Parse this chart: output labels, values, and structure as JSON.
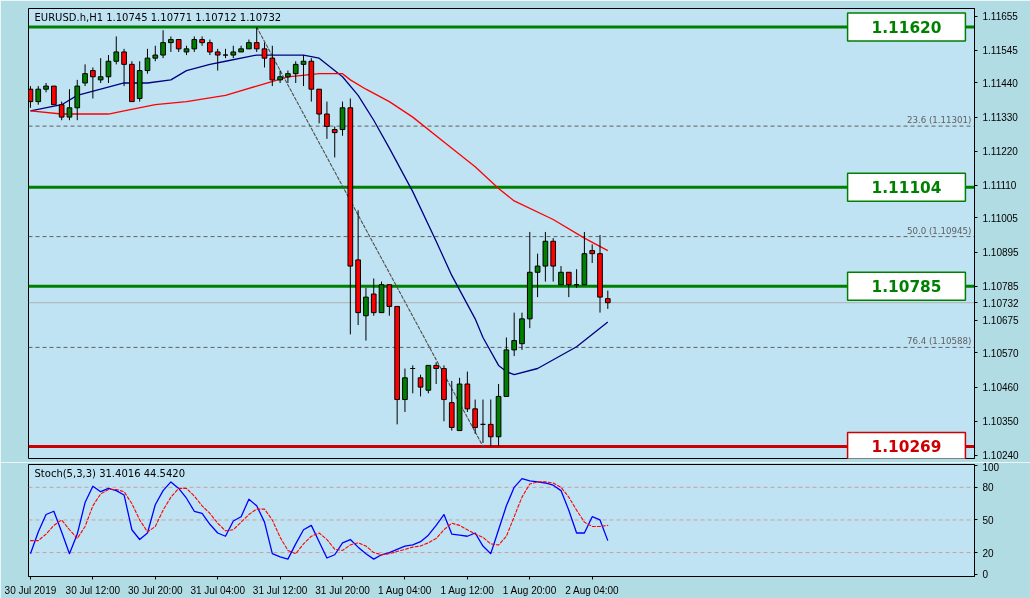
{
  "chart_data": [
    {
      "type": "candlestick",
      "title": "EURUSD.h,H1 1.10745 1.10771 1.10712 1.10732",
      "x": [
        "2019-07-30T04:00",
        "2019-07-30T05:00",
        "2019-07-30T06:00",
        "2019-07-30T07:00",
        "2019-07-30T08:00",
        "2019-07-30T09:00",
        "2019-07-30T10:00",
        "2019-07-30T11:00",
        "2019-07-30T12:00",
        "2019-07-30T13:00",
        "2019-07-30T14:00",
        "2019-07-30T15:00",
        "2019-07-30T16:00",
        "2019-07-30T17:00",
        "2019-07-30T18:00",
        "2019-07-30T19:00",
        "2019-07-30T20:00",
        "2019-07-30T21:00",
        "2019-07-30T22:00",
        "2019-07-30T23:00",
        "2019-07-31T00:00",
        "2019-07-31T01:00",
        "2019-07-31T02:00",
        "2019-07-31T03:00",
        "2019-07-31T04:00",
        "2019-07-31T05:00",
        "2019-07-31T06:00",
        "2019-07-31T07:00",
        "2019-07-31T08:00",
        "2019-07-31T09:00",
        "2019-07-31T10:00",
        "2019-07-31T11:00",
        "2019-07-31T12:00",
        "2019-07-31T13:00",
        "2019-07-31T14:00",
        "2019-07-31T15:00",
        "2019-07-31T16:00",
        "2019-07-31T17:00",
        "2019-07-31T18:00",
        "2019-07-31T19:00",
        "2019-07-31T20:00",
        "2019-07-31T21:00",
        "2019-07-31T22:00",
        "2019-07-31T23:00",
        "2019-08-01T00:00",
        "2019-08-01T01:00",
        "2019-08-01T02:00",
        "2019-08-01T03:00",
        "2019-08-01T04:00",
        "2019-08-01T05:00",
        "2019-08-01T06:00",
        "2019-08-01T07:00",
        "2019-08-01T08:00",
        "2019-08-01T09:00",
        "2019-08-01T10:00",
        "2019-08-01T11:00",
        "2019-08-01T12:00",
        "2019-08-01T13:00",
        "2019-08-01T14:00",
        "2019-08-01T15:00",
        "2019-08-01T16:00",
        "2019-08-01T17:00",
        "2019-08-01T18:00",
        "2019-08-01T19:00",
        "2019-08-01T20:00",
        "2019-08-01T21:00",
        "2019-08-01T22:00",
        "2019-08-01T23:00",
        "2019-08-02T00:00",
        "2019-08-02T01:00",
        "2019-08-02T02:00",
        "2019-08-02T03:00",
        "2019-08-02T04:00",
        "2019-08-02T05:00",
        "2019-08-02T06:00"
      ],
      "ohlc": [
        [
          1.1142,
          1.1143,
          1.1136,
          1.1138
        ],
        [
          1.1138,
          1.1143,
          1.1137,
          1.1142
        ],
        [
          1.1142,
          1.1144,
          1.1141,
          1.1143
        ],
        [
          1.1143,
          1.1143,
          1.1137,
          1.1137
        ],
        [
          1.1137,
          1.1138,
          1.1132,
          1.1133
        ],
        [
          1.1133,
          1.1142,
          1.1132,
          1.1136
        ],
        [
          1.1136,
          1.1145,
          1.1132,
          1.1143
        ],
        [
          1.1144,
          1.115,
          1.1143,
          1.1147
        ],
        [
          1.1148,
          1.1149,
          1.1139,
          1.1146
        ],
        [
          1.1145,
          1.1152,
          1.1144,
          1.1146
        ],
        [
          1.1146,
          1.1153,
          1.1144,
          1.1151
        ],
        [
          1.1151,
          1.1159,
          1.115,
          1.1154
        ],
        [
          1.1154,
          1.1155,
          1.1143,
          1.115
        ],
        [
          1.115,
          1.1151,
          1.1138,
          1.1138
        ],
        [
          1.1139,
          1.1151,
          1.1138,
          1.1148
        ],
        [
          1.1148,
          1.1155,
          1.1147,
          1.1152
        ],
        [
          1.1152,
          1.1156,
          1.1151,
          1.1153
        ],
        [
          1.1153,
          1.1161,
          1.1152,
          1.1157
        ],
        [
          1.1157,
          1.1159,
          1.1154,
          1.1158
        ],
        [
          1.1158,
          1.1158,
          1.1154,
          1.1155
        ],
        [
          1.1154,
          1.1156,
          1.1153,
          1.1155
        ],
        [
          1.1155,
          1.1159,
          1.1154,
          1.1158
        ],
        [
          1.1158,
          1.1159,
          1.1156,
          1.1157
        ],
        [
          1.1157,
          1.1158,
          1.1153,
          1.1154
        ],
        [
          1.1154,
          1.1155,
          1.1148,
          1.1153
        ],
        [
          1.1153,
          1.1155,
          1.1152,
          1.1153
        ],
        [
          1.1153,
          1.1156,
          1.1152,
          1.1154
        ],
        [
          1.1154,
          1.1156,
          1.1154,
          1.1155
        ],
        [
          1.1155,
          1.1158,
          1.1155,
          1.1157
        ],
        [
          1.1157,
          1.1162,
          1.1154,
          1.1155
        ],
        [
          1.1155,
          1.1157,
          1.1149,
          1.1152
        ],
        [
          1.1152,
          1.1156,
          1.1143,
          1.1145
        ],
        [
          1.1145,
          1.1148,
          1.1144,
          1.1146
        ],
        [
          1.1146,
          1.1148,
          1.1144,
          1.1147
        ],
        [
          1.1147,
          1.1151,
          1.1144,
          1.115
        ],
        [
          1.115,
          1.1153,
          1.1143,
          1.1151
        ],
        [
          1.1151,
          1.1152,
          1.1138,
          1.1142
        ],
        [
          1.1142,
          1.1142,
          1.1131,
          1.1134
        ],
        [
          1.1134,
          1.1138,
          1.1126,
          1.113
        ],
        [
          1.1129,
          1.113,
          1.112,
          1.1128
        ],
        [
          1.1129,
          1.1138,
          1.1127,
          1.1136
        ],
        [
          1.1136,
          1.1139,
          1.1063,
          1.1085
        ],
        [
          1.1087,
          1.1103,
          1.1066,
          1.107
        ],
        [
          1.1069,
          1.1078,
          1.1061,
          1.1075
        ],
        [
          1.1076,
          1.1081,
          1.1069,
          1.107
        ],
        [
          1.107,
          1.108,
          1.107,
          1.1079
        ],
        [
          1.1079,
          1.1079,
          1.1069,
          1.1072
        ],
        [
          1.1072,
          1.1072,
          1.1034,
          1.1042
        ],
        [
          1.1042,
          1.1052,
          1.1038,
          1.1049
        ],
        [
          1.1052,
          1.1053,
          1.1044,
          1.1052
        ],
        [
          1.1049,
          1.105,
          1.1043,
          1.1046
        ],
        [
          1.1045,
          1.1053,
          1.1044,
          1.1053
        ],
        [
          1.1053,
          1.1054,
          1.1047,
          1.1052
        ],
        [
          1.1052,
          1.1053,
          1.1035,
          1.1042
        ],
        [
          1.1041,
          1.1048,
          1.1032,
          1.1033
        ],
        [
          1.1032,
          1.1049,
          1.1032,
          1.1047
        ],
        [
          1.1047,
          1.1051,
          1.1038,
          1.1039
        ],
        [
          1.1039,
          1.1042,
          1.1031,
          1.1033
        ],
        [
          1.1034,
          1.1042,
          1.1028,
          1.1034
        ],
        [
          1.1034,
          1.1042,
          1.1027,
          1.103
        ],
        [
          1.103,
          1.1047,
          1.1027,
          1.1043
        ],
        [
          1.1043,
          1.1062,
          1.1043,
          1.1058
        ],
        [
          1.1058,
          1.107,
          1.1056,
          1.1061
        ],
        [
          1.106,
          1.107,
          1.1058,
          1.1068
        ],
        [
          1.1068,
          1.1096,
          1.1065,
          1.1083
        ],
        [
          1.1083,
          1.1089,
          1.1075,
          1.1085
        ],
        [
          1.1085,
          1.1096,
          1.108,
          1.1093
        ],
        [
          1.1093,
          1.1094,
          1.108,
          1.1085
        ],
        [
          1.1079,
          1.1085,
          1.1079,
          1.1083
        ],
        [
          1.1083,
          1.1083,
          1.1075,
          1.1079
        ],
        [
          1.1079,
          1.1084,
          1.1078,
          1.1079
        ],
        [
          1.1079,
          1.1096,
          1.1079,
          1.1089
        ],
        [
          1.109,
          1.1092,
          1.1086,
          1.1089
        ],
        [
          1.1089,
          1.1095,
          1.107,
          1.1075
        ],
        [
          1.10745,
          1.10771,
          1.10712,
          1.10732
        ]
      ],
      "colors": [
        "#ff0000",
        "#008000",
        "#008000",
        "#ff0000",
        "#ff0000",
        "#008000",
        "#008000",
        "#008000",
        "#ff0000",
        "#008000",
        "#008000",
        "#008000",
        "#ff0000",
        "#ff0000",
        "#008000",
        "#008000",
        "#008000",
        "#008000",
        "#008000",
        "#ff0000",
        "#008000",
        "#008000",
        "#ff0000",
        "#ff0000",
        "#ff0000",
        "#000000",
        "#008000",
        "#008000",
        "#008000",
        "#ff0000",
        "#ff0000",
        "#ff0000",
        "#008000",
        "#008000",
        "#008000",
        "#008000",
        "#ff0000",
        "#ff0000",
        "#ff0000",
        "#ff0000",
        "#008000",
        "#ff0000",
        "#ff0000",
        "#008000",
        "#ff0000",
        "#008000",
        "#ff0000",
        "#ff0000",
        "#008000",
        "#000000",
        "#ff0000",
        "#008000",
        "#ff0000",
        "#ff0000",
        "#ff0000",
        "#008000",
        "#ff0000",
        "#ff0000",
        "#000000",
        "#ff0000",
        "#008000",
        "#008000",
        "#008000",
        "#008000",
        "#008000",
        "#008000",
        "#008000",
        "#ff0000",
        "#008000",
        "#ff0000",
        "#000000",
        "#008000",
        "#ff0000",
        "#ff0000",
        "#ff0000"
      ],
      "series": [
        {
          "type": "line",
          "color": "#000080",
          "x": [
            "2019-07-30T04:00",
            "2019-07-30T08:00",
            "2019-07-30T10:00",
            "2019-07-30T13:00",
            "2019-07-30T16:00",
            "2019-07-30T19:00",
            "2019-07-30T22:00",
            "2019-07-31T00:00",
            "2019-07-31T03:00",
            "2019-07-31T05:00",
            "2019-07-31T09:00",
            "2019-07-31T11:00",
            "2019-07-31T15:00",
            "2019-07-31T17:00",
            "2019-07-31T20:00",
            "2019-07-31T22:00",
            "2019-08-01T00:00",
            "2019-08-01T02:00",
            "2019-08-01T05:00",
            "2019-08-01T08:00",
            "2019-08-01T10:00",
            "2019-08-01T13:00",
            "2019-08-01T14:00",
            "2019-08-01T16:00",
            "2019-08-01T17:00",
            "2019-08-01T18:00",
            "2019-08-01T21:00",
            "2019-08-02T02:00",
            "2019-08-02T06:00"
          ],
          "values": [
            1.1135,
            1.1137,
            1.114,
            1.1142,
            1.1144,
            1.1144,
            1.1145,
            1.1148,
            1.115,
            1.1151,
            1.1153,
            1.1153,
            1.1153,
            1.1152,
            1.1146,
            1.114,
            1.1132,
            1.1123,
            1.1109,
            1.1093,
            1.1082,
            1.1068,
            1.1062,
            1.1053,
            1.1051,
            1.105,
            1.1052,
            1.1059,
            1.1067
          ]
        },
        {
          "type": "line",
          "color": "#ff0000",
          "x": [
            "2019-07-30T04:00",
            "2019-07-30T08:00",
            "2019-07-30T14:00",
            "2019-07-30T16:00",
            "2019-07-30T20:00",
            "2019-07-31T00:00",
            "2019-07-31T05:00",
            "2019-07-31T09:00",
            "2019-07-31T13:00",
            "2019-07-31T17:00",
            "2019-07-31T20:00",
            "2019-07-31T21:00",
            "2019-07-31T23:00",
            "2019-08-01T02:00",
            "2019-08-01T05:00",
            "2019-08-01T09:00",
            "2019-08-01T13:00",
            "2019-08-01T16:00",
            "2019-08-01T18:00",
            "2019-08-01T23:00",
            "2019-08-02T03:00",
            "2019-08-02T06:00"
          ],
          "values": [
            1.1135,
            1.1134,
            1.1134,
            1.1135,
            1.1137,
            1.1138,
            1.114,
            1.1143,
            1.1146,
            1.1147,
            1.1147,
            1.1145,
            1.1142,
            1.1138,
            1.1133,
            1.1125,
            1.1117,
            1.111,
            1.1106,
            1.11,
            1.1094,
            1.109
          ]
        },
        {
          "type": "line",
          "color": "#505050",
          "line_style": "dashed",
          "x": [
            "2019-07-31T09:00",
            "2019-08-01T14:00"
          ],
          "values": [
            1.1162,
            1.10269
          ]
        }
      ],
      "xlim": [
        "2019-07-30T03:45",
        "2019-08-04T05:00"
      ],
      "ylim": [
        1.1023,
        1.1168
      ],
      "yticks": [
        1.11655,
        1.11545,
        {
          "value": 1.1144,
          "label": "1.11440"
        },
        {
          "value": 1.1133,
          "label": "1.11330"
        },
        {
          "value": 1.1122,
          "label": "1.11220"
        },
        {
          "value": 1.1111,
          "label": "1.11110"
        },
        1.11005,
        1.10895,
        1.10785,
        1.10732,
        1.10675,
        {
          "value": 1.1057,
          "label": "1.10570"
        },
        {
          "value": 1.1046,
          "label": "1.10460"
        },
        {
          "value": 1.1035,
          "label": "1.10350"
        },
        {
          "value": 1.1024,
          "label": "1.10240"
        }
      ],
      "tick_labels": "y",
      "ref_lines": [
        {
          "axis": "y",
          "value": 1.1162,
          "label": "1.11620",
          "color": "#008000",
          "line_style": "solid"
        },
        {
          "axis": "y",
          "value": 1.11104,
          "label": "1.11104",
          "color": "#008000",
          "line_style": "solid"
        },
        {
          "axis": "y",
          "value": 1.10785,
          "label": "1.10785",
          "color": "#008000",
          "line_style": "solid"
        },
        {
          "axis": "y",
          "value": 1.10269,
          "label": "1.10269",
          "color": "#cc0000",
          "line_style": "solid"
        },
        {
          "axis": "y",
          "value": 1.11301,
          "label": "23.6 (1.11301)",
          "color": "#606060",
          "line_style": "dashed"
        },
        {
          "axis": "y",
          "value": 1.10945,
          "label": "50.0 (1.10945)",
          "color": "#606060",
          "line_style": "dashed"
        },
        {
          "axis": "y",
          "value": 1.10588,
          "label": "76.4 (1.10588)",
          "color": "#606060",
          "line_style": "dashed"
        },
        {
          "axis": "y",
          "value": 1.10732,
          "color": "#b0b0b0",
          "line_style": "solid"
        }
      ]
    },
    {
      "type": "line",
      "title": "Stoch(5,3,3) 31.4016 44.5420",
      "x": [
        "2019-07-30T04:00",
        "2019-07-30T05:00",
        "2019-07-30T06:00",
        "2019-07-30T07:00",
        "2019-07-30T08:00",
        "2019-07-30T09:00",
        "2019-07-30T10:00",
        "2019-07-30T11:00",
        "2019-07-30T12:00",
        "2019-07-30T13:00",
        "2019-07-30T14:00",
        "2019-07-30T15:00",
        "2019-07-30T16:00",
        "2019-07-30T17:00",
        "2019-07-30T18:00",
        "2019-07-30T19:00",
        "2019-07-30T20:00",
        "2019-07-30T21:00",
        "2019-07-30T22:00",
        "2019-07-30T23:00",
        "2019-07-31T00:00",
        "2019-07-31T01:00",
        "2019-07-31T02:00",
        "2019-07-31T03:00",
        "2019-07-31T04:00",
        "2019-07-31T05:00",
        "2019-07-31T06:00",
        "2019-07-31T07:00",
        "2019-07-31T08:00",
        "2019-07-31T09:00",
        "2019-07-31T10:00",
        "2019-07-31T11:00",
        "2019-07-31T12:00",
        "2019-07-31T13:00",
        "2019-07-31T14:00",
        "2019-07-31T15:00",
        "2019-07-31T16:00",
        "2019-07-31T17:00",
        "2019-07-31T18:00",
        "2019-07-31T19:00",
        "2019-07-31T20:00",
        "2019-07-31T21:00",
        "2019-07-31T22:00",
        "2019-07-31T23:00",
        "2019-08-01T00:00",
        "2019-08-01T01:00",
        "2019-08-01T02:00",
        "2019-08-01T03:00",
        "2019-08-01T04:00",
        "2019-08-01T05:00",
        "2019-08-01T06:00",
        "2019-08-01T07:00",
        "2019-08-01T08:00",
        "2019-08-01T09:00",
        "2019-08-01T10:00",
        "2019-08-01T11:00",
        "2019-08-01T12:00",
        "2019-08-01T13:00",
        "2019-08-01T14:00",
        "2019-08-01T15:00",
        "2019-08-01T16:00",
        "2019-08-01T17:00",
        "2019-08-01T18:00",
        "2019-08-01T19:00",
        "2019-08-01T20:00",
        "2019-08-01T21:00",
        "2019-08-01T22:00",
        "2019-08-01T23:00",
        "2019-08-02T00:00",
        "2019-08-02T01:00",
        "2019-08-02T02:00",
        "2019-08-02T03:00",
        "2019-08-02T04:00",
        "2019-08-02T05:00",
        "2019-08-02T06:00"
      ],
      "series": [
        {
          "color": "#0000ff",
          "values": [
            19,
            39,
            55,
            58,
            39,
            19,
            37,
            66,
            81,
            76,
            79,
            77,
            73,
            41,
            32,
            38,
            64,
            77,
            85,
            79,
            70,
            58,
            56,
            46,
            38,
            35,
            49,
            53,
            69,
            63,
            48,
            19,
            16,
            14,
            28,
            41,
            45,
            30,
            15,
            18,
            29,
            32,
            25,
            19,
            14,
            18,
            20,
            23,
            26,
            27,
            30,
            36,
            45,
            55,
            37,
            36,
            35,
            38,
            26,
            19,
            41,
            63,
            80,
            88,
            86,
            85,
            84,
            82,
            77,
            59,
            38,
            38,
            53,
            50,
            31
          ]
        },
        {
          "color": "#ff0000",
          "line_style": "dashed",
          "values": [
            31,
            31,
            37,
            45,
            50,
            41,
            33,
            44,
            63,
            74,
            78,
            78,
            76,
            65,
            50,
            39,
            44,
            59,
            71,
            79,
            79,
            72,
            63,
            56,
            47,
            40,
            41,
            48,
            55,
            60,
            60,
            50,
            34,
            22,
            19,
            28,
            35,
            38,
            32,
            23,
            22,
            27,
            29,
            26,
            20,
            18,
            19,
            21,
            23,
            25,
            26,
            29,
            33,
            41,
            47,
            45,
            41,
            37,
            34,
            28,
            27,
            35,
            53,
            71,
            83,
            85,
            85,
            84,
            80,
            71,
            59,
            48,
            44,
            44,
            45
          ]
        }
      ],
      "xlim": [
        "2019-07-30T03:45",
        "2019-08-04T05:00"
      ],
      "xticks": [
        {
          "value": "2019-07-30T04:00",
          "label": "30 Jul 2019"
        },
        {
          "value": "2019-07-30T12:00",
          "label": "30 Jul 12:00"
        },
        {
          "value": "2019-07-30T20:00",
          "label": "30 Jul 20:00"
        },
        {
          "value": "2019-07-31T04:00",
          "label": "31 Jul 04:00"
        },
        {
          "value": "2019-07-31T12:00",
          "label": "31 Jul 12:00"
        },
        {
          "value": "2019-07-31T20:00",
          "label": "31 Jul 20:00"
        },
        {
          "value": "2019-08-01T04:00",
          "label": "1 Aug 04:00"
        },
        {
          "value": "2019-08-01T12:00",
          "label": "1 Aug 12:00"
        },
        {
          "value": "2019-08-01T20:00",
          "label": "1 Aug 20:00"
        },
        {
          "value": "2019-08-02T04:00",
          "label": "2 Aug 04:00"
        }
      ],
      "ylim": [
        -2,
        101
      ],
      "yticks": [
        0,
        20,
        50,
        80,
        100
      ],
      "ref_lines": [
        {
          "axis": "y",
          "value": 80,
          "color": "#c8a0a0",
          "line_style": "dashed"
        },
        {
          "axis": "y",
          "value": 50,
          "color": "#c8a0a0",
          "line_style": "dashed"
        },
        {
          "axis": "y",
          "value": 20,
          "color": "#c8a0a0",
          "line_style": "dashed"
        }
      ]
    }
  ]
}
